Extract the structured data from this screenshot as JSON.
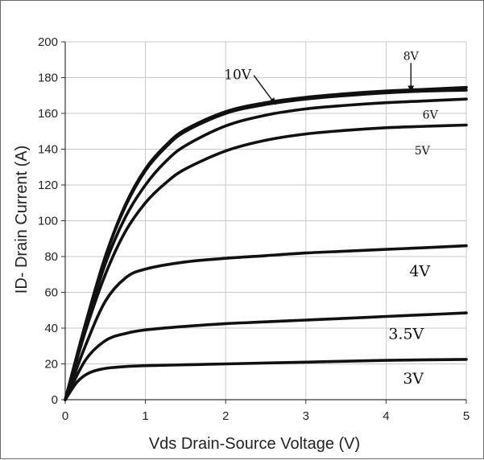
{
  "chart_data": {
    "type": "line",
    "title": "",
    "xlabel": "Vds Drain-Source Voltage (V)",
    "ylabel": "ID- Drain Current (A)",
    "xlim": [
      0,
      5
    ],
    "ylim": [
      0,
      200
    ],
    "xticks": [
      0,
      1,
      2,
      3,
      4,
      5
    ],
    "yticks": [
      0,
      20,
      40,
      60,
      80,
      100,
      120,
      140,
      160,
      180,
      200
    ],
    "grid": true,
    "legend": "none",
    "line_color": "#111111",
    "series": [
      {
        "name": "10V",
        "x": [
          0,
          0.25,
          0.5,
          0.75,
          1,
          1.25,
          1.5,
          2,
          2.5,
          3,
          3.5,
          4,
          4.5,
          5
        ],
        "y": [
          0,
          42,
          80,
          109,
          129,
          142,
          151,
          161,
          166,
          169,
          171,
          172.5,
          173.5,
          174.5
        ]
      },
      {
        "name": "8V",
        "x": [
          0,
          0.25,
          0.5,
          0.75,
          1,
          1.25,
          1.5,
          2,
          2.5,
          3,
          3.5,
          4,
          4.5,
          5
        ],
        "y": [
          0,
          42,
          80,
          108,
          128,
          141,
          150,
          160,
          165,
          168,
          170,
          171.5,
          172.5,
          173
        ]
      },
      {
        "name": "6V",
        "x": [
          0,
          0.25,
          0.5,
          0.75,
          1,
          1.25,
          1.5,
          2,
          2.5,
          3,
          3.5,
          4,
          4.5,
          5
        ],
        "y": [
          0,
          40,
          76,
          102,
          120,
          133,
          142,
          153,
          159,
          162.5,
          164.5,
          166,
          167,
          168
        ]
      },
      {
        "name": "5V",
        "x": [
          0,
          0.25,
          0.5,
          0.75,
          1,
          1.25,
          1.5,
          2,
          2.5,
          3,
          3.5,
          4,
          4.5,
          5
        ],
        "y": [
          0,
          38,
          70,
          94,
          110,
          121,
          129,
          139,
          145,
          148.5,
          150.5,
          152,
          152.8,
          153.5
        ]
      },
      {
        "name": "4V",
        "x": [
          0,
          0.25,
          0.5,
          0.75,
          1,
          1.5,
          2,
          2.5,
          3,
          3.5,
          4,
          4.5,
          5
        ],
        "y": [
          0,
          30,
          55,
          68,
          73,
          77,
          79,
          80.5,
          82,
          83,
          84,
          85,
          86
        ]
      },
      {
        "name": "3.5V",
        "x": [
          0,
          0.25,
          0.5,
          0.75,
          1,
          1.5,
          2,
          2.5,
          3,
          3.5,
          4,
          4.5,
          5
        ],
        "y": [
          0,
          22,
          33,
          37,
          39,
          41,
          42.5,
          43.5,
          44.5,
          45.5,
          46.5,
          47.5,
          48.5
        ]
      },
      {
        "name": "3V",
        "x": [
          0,
          0.15,
          0.3,
          0.5,
          0.75,
          1,
          1.5,
          2,
          3,
          4,
          5
        ],
        "y": [
          0,
          10,
          15,
          17.5,
          18.5,
          19,
          19.5,
          20,
          21,
          22,
          22.5
        ]
      }
    ],
    "annotations": [
      {
        "text": "10V",
        "x": 2.15,
        "y": 179,
        "arrow_to": [
          2.62,
          165
        ]
      },
      {
        "text": "8V",
        "x": 4.31,
        "y": 190,
        "arrow_to": [
          4.31,
          172
        ]
      },
      {
        "text": "6V",
        "x": 4.55,
        "y": 157
      },
      {
        "text": "5V",
        "x": 4.45,
        "y": 137
      },
      {
        "text": "4V",
        "x": 4.42,
        "y": 69
      },
      {
        "text": "3.5V",
        "x": 4.25,
        "y": 34
      },
      {
        "text": "3V",
        "x": 4.34,
        "y": 9
      }
    ]
  }
}
